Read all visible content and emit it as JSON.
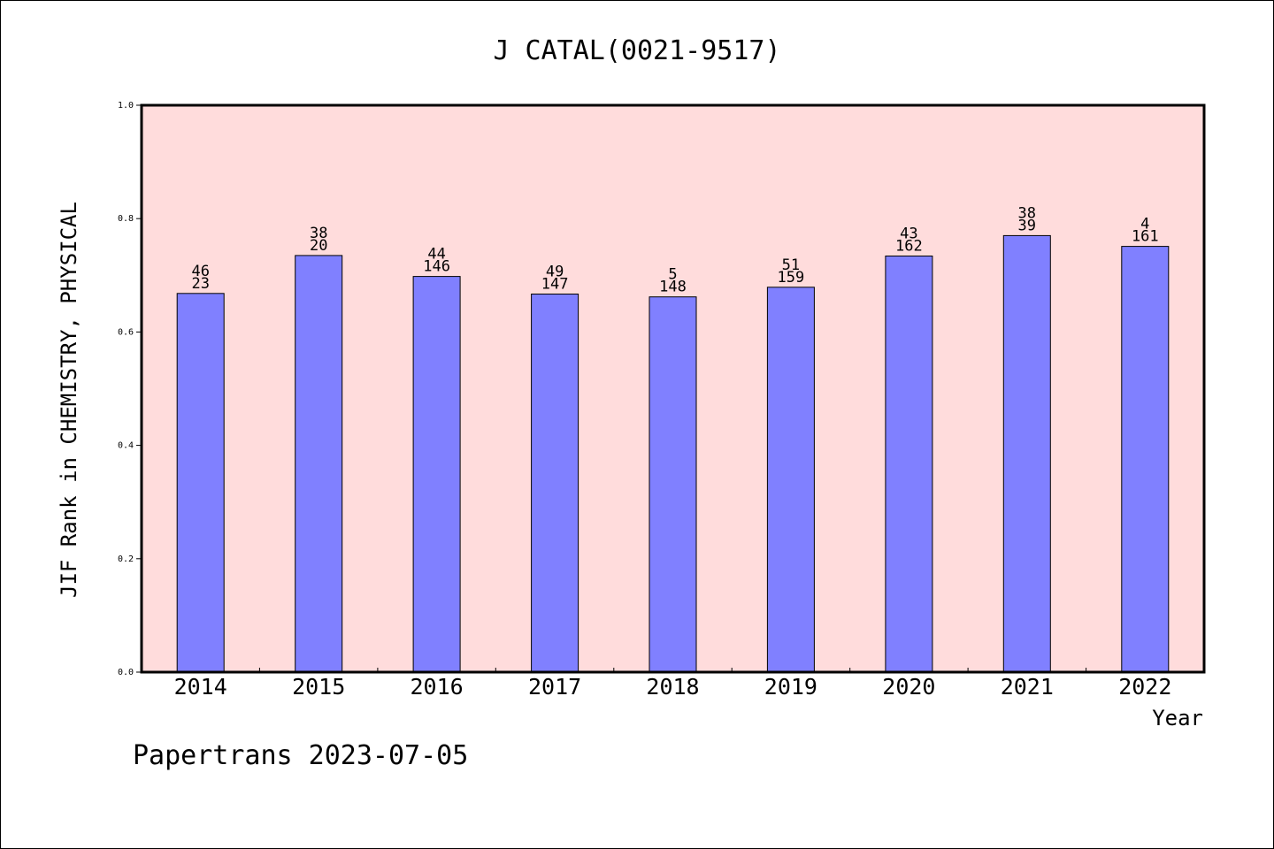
{
  "chart_data": {
    "type": "bar",
    "title": "J CATAL(0021-9517)",
    "xlabel": "Year",
    "ylabel": "JIF Rank in CHEMISTRY, PHYSICAL",
    "categories": [
      "2014",
      "2015",
      "2016",
      "2017",
      "2018",
      "2019",
      "2020",
      "2021",
      "2022"
    ],
    "values": [
      0.668,
      0.735,
      0.698,
      0.667,
      0.662,
      0.679,
      0.734,
      0.77,
      0.751
    ],
    "bar_labels_top": [
      "46",
      "38",
      "44",
      "49",
      "5",
      "51",
      "43",
      "38",
      "4"
    ],
    "bar_labels_bottom": [
      "23",
      "20",
      "146",
      "147",
      "148",
      "159",
      "162",
      "39",
      "161"
    ],
    "ylim": [
      0,
      1.0
    ],
    "yticks": [
      "0.0",
      "0.2",
      "0.4",
      "0.6",
      "0.8",
      "1.0"
    ],
    "grid": false,
    "colors": {
      "bar": "#8080ff",
      "plot_background": "#ffdcdc"
    }
  },
  "footer": {
    "credit": "Papertrans 2023-07-05"
  }
}
